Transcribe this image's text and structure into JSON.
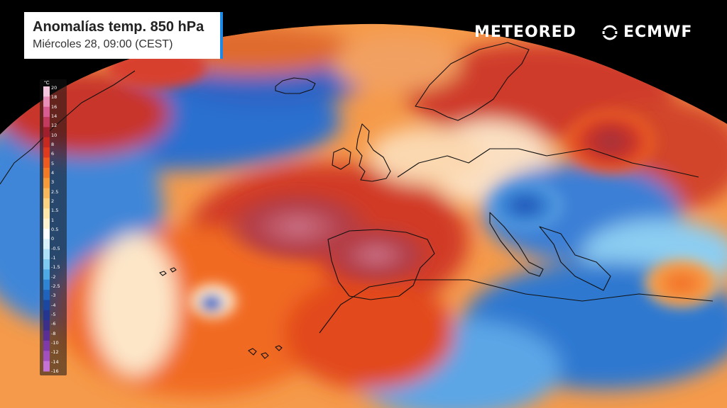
{
  "title": "Anomalías temp. 850 hPa",
  "subtitle": "Miércoles 28, 09:00 (CEST)",
  "brands": {
    "meteored": "METEORED",
    "ecmwf": "ECMWF"
  },
  "legend": {
    "unit": "°C",
    "ticks": [
      "20",
      "18",
      "16",
      "14",
      "12",
      "10",
      "8",
      "6",
      "5",
      "4",
      "3",
      "2.5",
      "2",
      "1.5",
      "1",
      "0.5",
      "0",
      "-0.5",
      "-1",
      "-1.5",
      "-2",
      "-2.5",
      "-3",
      "-4",
      "-5",
      "-6",
      "-8",
      "-10",
      "-12",
      "-14",
      "-16"
    ],
    "colors": [
      "#f4c6dd",
      "#e88fb9",
      "#d65c91",
      "#c23b5f",
      "#a11f2c",
      "#c7281f",
      "#e03a1e",
      "#ef5a1e",
      "#f47a25",
      "#f79a3a",
      "#f9b85c",
      "#fbd282",
      "#fde6aa",
      "#fff3d1",
      "#ffffff",
      "#d9f1fb",
      "#aee1f7",
      "#7fcaf0",
      "#4ea9e5",
      "#2f85d4",
      "#1f63bd",
      "#1b47a0",
      "#253691",
      "#3b2f8a",
      "#5a2f95",
      "#7e3aa8",
      "#a24fc0",
      "#c472d6"
    ]
  }
}
